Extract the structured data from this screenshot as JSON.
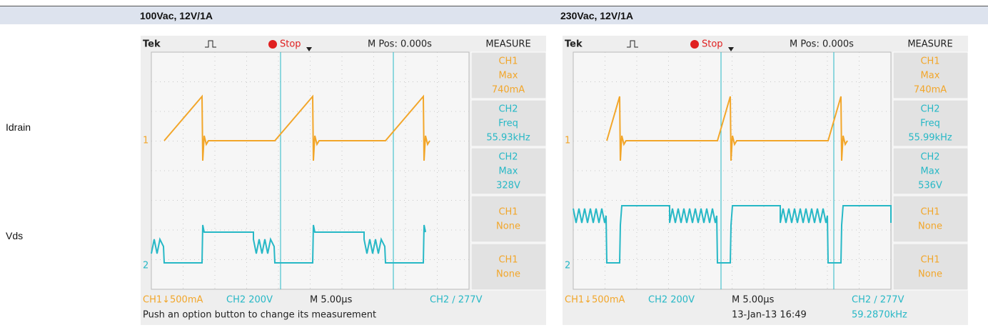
{
  "header": {
    "columns": [
      "100Vac, 12V/1A",
      "230Vac, 12V/1A"
    ]
  },
  "rows": [
    "Idrain",
    "Vds"
  ],
  "scopes": [
    {
      "brand": "Tek",
      "status": "Stop",
      "position": "M Pos: 0.000s",
      "panel_title": "MEASURE",
      "measurements": [
        [
          "CH1",
          "Max",
          "740mA"
        ],
        [
          "CH2",
          "Freq",
          "55.93kHz"
        ],
        [
          "CH2",
          "Max",
          "328V"
        ],
        [
          "CH1",
          "None"
        ],
        [
          "CH1",
          "None"
        ]
      ],
      "markers": [
        "1",
        "2"
      ],
      "footer": [
        "CH1↓500mA",
        "CH2 200V",
        "M 5.00µs",
        "CH2 ∕ 277V"
      ],
      "status_line": [
        "Push an option button to change its measurement"
      ]
    },
    {
      "brand": "Tek",
      "status": "Stop",
      "position": "M Pos: 0.000s",
      "panel_title": "MEASURE",
      "measurements": [
        [
          "CH1",
          "Max",
          "740mA"
        ],
        [
          "CH2",
          "Freq",
          "55.99kHz"
        ],
        [
          "CH2",
          "Max",
          "536V"
        ],
        [
          "CH1",
          "None"
        ],
        [
          "CH1",
          "None"
        ]
      ],
      "markers": [
        "1",
        "2"
      ],
      "footer": [
        "CH1↓500mA",
        "CH2 200V",
        "M 5.00µs",
        "CH2 ∕ 277V"
      ],
      "status_line": [
        "13-Jan-13 16:49",
        "59.2870kHz"
      ]
    }
  ]
}
